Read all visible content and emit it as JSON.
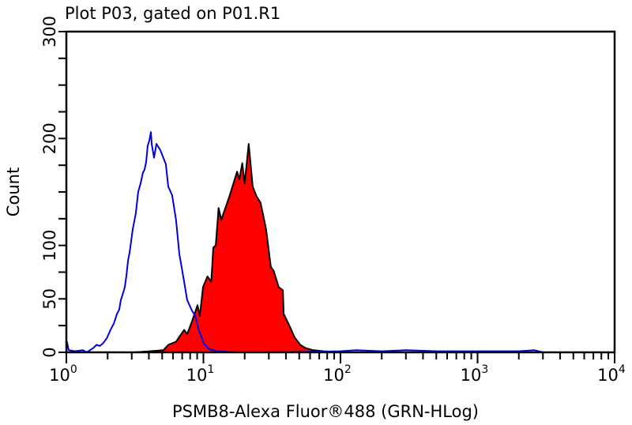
{
  "chart_data": {
    "type": "area",
    "title": "Plot P03, gated on P01.R1",
    "xlabel": "PSMB8-Alexa Fluor®488 (GRN-HLog)",
    "ylabel": "Count",
    "xscale": "log",
    "xlim": [
      1,
      10000
    ],
    "ylim": [
      0,
      300
    ],
    "x_tick_labels": [
      {
        "base": "10",
        "exp": "0"
      },
      {
        "base": "10",
        "exp": "1"
      },
      {
        "base": "10",
        "exp": "2"
      },
      {
        "base": "10",
        "exp": "3"
      },
      {
        "base": "10",
        "exp": "4"
      }
    ],
    "y_tick_labels": [
      "0",
      "50",
      "100",
      "200",
      "300"
    ],
    "y_tick_values": [
      0,
      50,
      100,
      200,
      300
    ],
    "grid": false,
    "series": [
      {
        "style": "outline",
        "color": "#0000dd",
        "points": [
          [
            1.0,
            0
          ],
          [
            1.01,
            10
          ],
          [
            1.04,
            2
          ],
          [
            1.16,
            1
          ],
          [
            1.32,
            2
          ],
          [
            1.41,
            0
          ],
          [
            1.57,
            4
          ],
          [
            1.66,
            7
          ],
          [
            1.75,
            6
          ],
          [
            1.84,
            8
          ],
          [
            1.97,
            13
          ],
          [
            2.1,
            21
          ],
          [
            2.22,
            27
          ],
          [
            2.34,
            36
          ],
          [
            2.43,
            40
          ],
          [
            2.5,
            49
          ],
          [
            2.56,
            53
          ],
          [
            2.67,
            61
          ],
          [
            2.74,
            71
          ],
          [
            2.82,
            86
          ],
          [
            2.89,
            93
          ],
          [
            3.05,
            115
          ],
          [
            3.21,
            130
          ],
          [
            3.34,
            150
          ],
          [
            3.48,
            158
          ],
          [
            3.62,
            168
          ],
          [
            3.72,
            171
          ],
          [
            3.82,
            178
          ],
          [
            3.92,
            193
          ],
          [
            4.03,
            198
          ],
          [
            4.14,
            206
          ],
          [
            4.19,
            195
          ],
          [
            4.36,
            182
          ],
          [
            4.54,
            195
          ],
          [
            4.85,
            189
          ],
          [
            5.32,
            176
          ],
          [
            5.54,
            155
          ],
          [
            5.91,
            147
          ],
          [
            6.31,
            124
          ],
          [
            6.67,
            92
          ],
          [
            7.23,
            66
          ],
          [
            7.61,
            49
          ],
          [
            8.25,
            39
          ],
          [
            8.71,
            34
          ],
          [
            9.29,
            20
          ],
          [
            10.1,
            8
          ],
          [
            11.0,
            3
          ],
          [
            12.6,
            1
          ],
          [
            17.6,
            0
          ],
          [
            28,
            0
          ],
          [
            100,
            1
          ],
          [
            130,
            2
          ],
          [
            200,
            1
          ],
          [
            300,
            2
          ],
          [
            500,
            1
          ],
          [
            1000,
            1
          ],
          [
            2000,
            1
          ],
          [
            2600,
            2
          ],
          [
            3000,
            0
          ]
        ]
      },
      {
        "style": "filled",
        "color": "#ff0000",
        "outline_color": "#000000",
        "points": [
          [
            3.13,
            0
          ],
          [
            4.08,
            1
          ],
          [
            5.11,
            2
          ],
          [
            5.54,
            7
          ],
          [
            6.32,
            10
          ],
          [
            7.23,
            21
          ],
          [
            7.61,
            17
          ],
          [
            8.25,
            29
          ],
          [
            9.05,
            44
          ],
          [
            9.41,
            34
          ],
          [
            9.93,
            61
          ],
          [
            10.7,
            71
          ],
          [
            11.4,
            66
          ],
          [
            11.8,
            98
          ],
          [
            12.3,
            100
          ],
          [
            12.9,
            135
          ],
          [
            13.5,
            124
          ],
          [
            15.4,
            145
          ],
          [
            17.6,
            169
          ],
          [
            18.3,
            162
          ],
          [
            19.2,
            177
          ],
          [
            20.0,
            158
          ],
          [
            21.4,
            195
          ],
          [
            22.9,
            155
          ],
          [
            24.4,
            146
          ],
          [
            26.1,
            140
          ],
          [
            28.7,
            115
          ],
          [
            31.0,
            80
          ],
          [
            32.6,
            76
          ],
          [
            35.4,
            61
          ],
          [
            38.0,
            58
          ],
          [
            38.5,
            36
          ],
          [
            42.7,
            24
          ],
          [
            46.3,
            14
          ],
          [
            50.9,
            7
          ],
          [
            55.6,
            4
          ],
          [
            63.2,
            2
          ],
          [
            75.2,
            1
          ],
          [
            98.6,
            0
          ]
        ]
      }
    ]
  }
}
